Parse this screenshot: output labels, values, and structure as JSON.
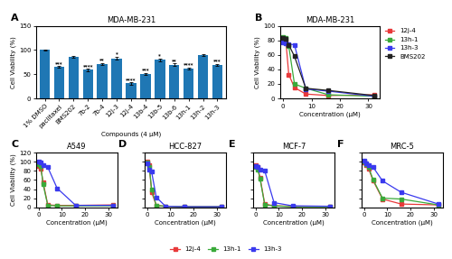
{
  "chart_data": [
    {
      "type": "bar",
      "title": "MDA-MB-231",
      "xlabel": "Compounds (4 μM)",
      "ylabel": "Cell Viability (%)",
      "categories": [
        "1% DMSO",
        "paclitaxel",
        "BMS202",
        "7b-2",
        "7b-4",
        "12j-3",
        "12j-4",
        "13b-4",
        "13b-5",
        "13b-6",
        "13h-1",
        "13h-2",
        "13h-3"
      ],
      "values": [
        100,
        65,
        86,
        59,
        71,
        83,
        31,
        51,
        80,
        70,
        62,
        90,
        69
      ],
      "errors": [
        1.5,
        1.5,
        2,
        2,
        2,
        2.5,
        2,
        2,
        2.5,
        2,
        2,
        2.5,
        2
      ],
      "ylim": [
        0,
        150
      ],
      "yticks": [
        0,
        50,
        100,
        150
      ],
      "annotations": [
        {
          "text": "A"
        },
        {
          "text": "***",
          "category": "paclitaxel"
        },
        {
          "text": "****",
          "category": "7b-2"
        },
        {
          "text": "**",
          "category": "7b-4"
        },
        {
          "text": "*",
          "category": "12j-3"
        },
        {
          "text": "****",
          "category": "12j-4"
        },
        {
          "text": "***",
          "category": "13b-4"
        },
        {
          "text": "*",
          "category": "13b-5"
        },
        {
          "text": "**",
          "category": "13b-6"
        },
        {
          "text": "****",
          "category": "13h-1"
        },
        {
          "text": "***",
          "category": "13h-3"
        }
      ]
    },
    {
      "type": "line",
      "title": "MDA-MB-231",
      "xlabel": "Concentration (μM)",
      "ylabel": "Cell Viability (%)",
      "x": [
        0,
        1,
        2,
        4,
        8,
        16,
        32
      ],
      "series": [
        {
          "name": "12j-4",
          "color": "#e8393a",
          "marker": "square",
          "line_style": "solid",
          "values": [
            80,
            78,
            33,
            15,
            6,
            4,
            5
          ]
        },
        {
          "name": "13h-1",
          "color": "#3aaa3a",
          "marker": "square",
          "line_style": "solid",
          "values": [
            85,
            83,
            72,
            20,
            14,
            5,
            3
          ]
        },
        {
          "name": "13h-3",
          "color": "#3a3aee",
          "marker": "square",
          "line_style": "solid",
          "values": [
            77,
            76,
            75,
            74,
            13,
            10,
            3
          ]
        },
        {
          "name": "BMS202",
          "color": "#222222",
          "marker": "square",
          "line_style": "solid",
          "values": [
            83,
            82,
            74,
            58,
            14,
            11,
            4
          ]
        }
      ],
      "xlim": [
        -1,
        34
      ],
      "xticks": [
        0,
        10,
        20,
        30
      ],
      "ylim": [
        0,
        100
      ],
      "yticks": [
        0,
        20,
        40,
        60,
        80,
        100
      ],
      "legend": "upper left",
      "annotations": [
        {
          "text": "B"
        }
      ]
    },
    {
      "type": "line",
      "title": "A549",
      "xlabel": "Concentration (μM)",
      "ylabel": "Cell Viability (%)",
      "x": [
        0,
        1,
        2,
        4,
        8,
        16,
        32
      ],
      "series": [
        {
          "name": "12j-4",
          "color": "#e8393a",
          "marker": "square",
          "line_style": "solid",
          "values": [
            90,
            85,
            55,
            5,
            4,
            4,
            5
          ]
        },
        {
          "name": "13h-1",
          "color": "#3aaa3a",
          "marker": "square",
          "line_style": "solid",
          "values": [
            95,
            90,
            50,
            4,
            3,
            3,
            3
          ]
        },
        {
          "name": "13h-3",
          "color": "#3a3aee",
          "marker": "square",
          "line_style": "solid",
          "values": [
            100,
            98,
            93,
            88,
            42,
            4,
            4
          ]
        }
      ],
      "xlim": [
        -1,
        34
      ],
      "xticks": [
        0,
        10,
        20,
        30
      ],
      "ylim": [
        0,
        120
      ],
      "yticks": [
        0,
        20,
        40,
        60,
        80,
        100,
        120
      ],
      "legend": "lower center",
      "annotations": [
        {
          "text": "C"
        }
      ]
    },
    {
      "type": "line",
      "title": "HCC-827",
      "xlabel": "Concentration (μM)",
      "x": [
        0,
        1,
        2,
        4,
        8,
        16,
        32
      ],
      "series": [
        {
          "name": "12j-4",
          "color": "#e8393a",
          "marker": "square",
          "line_style": "solid",
          "values": [
            100,
            92,
            33,
            4,
            2,
            1,
            1
          ]
        },
        {
          "name": "13h-1",
          "color": "#3aaa3a",
          "marker": "square",
          "line_style": "solid",
          "values": [
            98,
            88,
            40,
            4,
            2,
            1,
            1
          ]
        },
        {
          "name": "13h-3",
          "color": "#3a3aee",
          "marker": "square",
          "line_style": "solid",
          "values": [
            96,
            82,
            78,
            22,
            2,
            1,
            1
          ]
        }
      ],
      "xlim": [
        -1,
        34
      ],
      "xticks": [
        0,
        10,
        20,
        30
      ],
      "ylim": [
        0,
        120
      ],
      "yticks": [
        0,
        20,
        40,
        60,
        80,
        100,
        120
      ],
      "tick_labels": "x",
      "annotations": [
        {
          "text": "D"
        }
      ]
    },
    {
      "type": "line",
      "title": "MCF-7",
      "xlabel": "Concentration (μM)",
      "x": [
        0,
        1,
        2,
        4,
        8,
        16,
        32
      ],
      "series": [
        {
          "name": "12j-4",
          "color": "#e8393a",
          "marker": "square",
          "line_style": "solid",
          "values": [
            93,
            88,
            65,
            7,
            3,
            2,
            2
          ]
        },
        {
          "name": "13h-1",
          "color": "#3aaa3a",
          "marker": "square",
          "line_style": "solid",
          "values": [
            88,
            83,
            62,
            5,
            3,
            1,
            1
          ]
        },
        {
          "name": "13h-3",
          "color": "#3a3aee",
          "marker": "square",
          "line_style": "solid",
          "values": [
            90,
            88,
            83,
            80,
            10,
            3,
            2
          ]
        }
      ],
      "xlim": [
        -1,
        34
      ],
      "xticks": [
        0,
        10,
        20,
        30
      ],
      "ylim": [
        0,
        120
      ],
      "yticks": [
        0,
        20,
        40,
        60,
        80,
        100,
        120
      ],
      "tick_labels": "x",
      "annotations": [
        {
          "text": "E"
        }
      ]
    },
    {
      "type": "line",
      "title": "MRC-5",
      "xlabel": "Concentration (μM)",
      "x": [
        0,
        1,
        2,
        4,
        8,
        16,
        32
      ],
      "series": [
        {
          "name": "12j-4",
          "color": "#e8393a",
          "marker": "square",
          "line_style": "solid",
          "values": [
            98,
            92,
            85,
            58,
            18,
            7,
            5
          ]
        },
        {
          "name": "13h-1",
          "color": "#3aaa3a",
          "marker": "square",
          "line_style": "solid",
          "values": [
            100,
            94,
            88,
            60,
            20,
            18,
            5
          ]
        },
        {
          "name": "13h-3",
          "color": "#3a3aee",
          "marker": "square",
          "line_style": "solid",
          "values": [
            102,
            97,
            93,
            88,
            58,
            33,
            7
          ]
        }
      ],
      "xlim": [
        -1,
        34
      ],
      "xticks": [
        0,
        10,
        20,
        30
      ],
      "ylim": [
        0,
        120
      ],
      "yticks": [
        0,
        20,
        40,
        60,
        80,
        100,
        120
      ],
      "tick_labels": "x",
      "annotations": [
        {
          "text": "F"
        }
      ]
    }
  ]
}
